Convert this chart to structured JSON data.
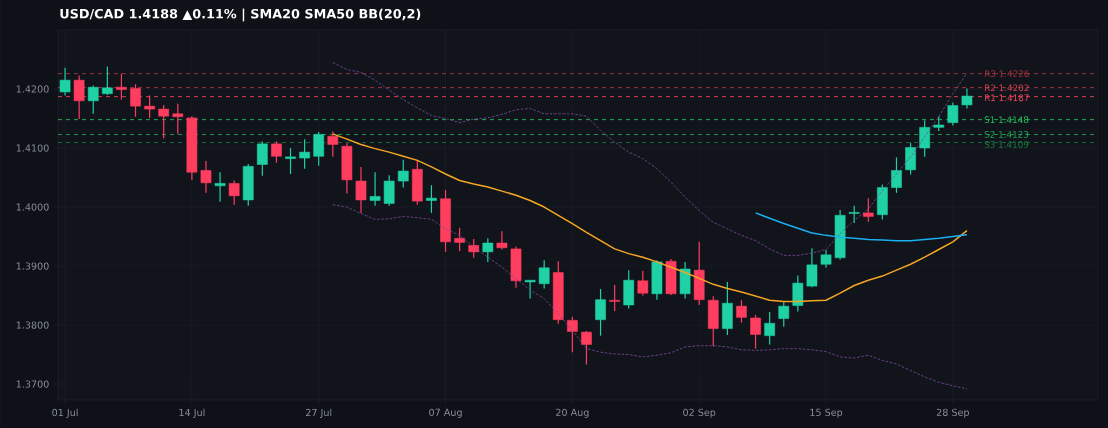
{
  "chart_data": {
    "type": "candlestick",
    "title": "USD/CAD  1.4188  ▲0.11%  |  SMA20  SMA50  BB(20,2)",
    "categories": [
      "01 Jul",
      null,
      null,
      null,
      null,
      null,
      null,
      null,
      null,
      "14 Jul",
      null,
      null,
      null,
      null,
      null,
      null,
      null,
      null,
      "27 Jul",
      null,
      null,
      null,
      null,
      null,
      null,
      null,
      null,
      "07 Aug",
      null,
      null,
      null,
      null,
      null,
      null,
      null,
      null,
      "20 Aug",
      null,
      null,
      null,
      null,
      null,
      null,
      null,
      null,
      "02 Sep",
      null,
      null,
      null,
      null,
      null,
      null,
      null,
      null,
      "15 Sep",
      null,
      null,
      null,
      null,
      null,
      null,
      null,
      null,
      "28 Sep",
      null
    ],
    "ohlc": [
      [
        1.4195,
        1.4236,
        1.4189,
        1.4215
      ],
      [
        1.4215,
        1.4223,
        1.4149,
        1.418
      ],
      [
        1.418,
        1.4206,
        1.4158,
        1.4203
      ],
      [
        1.4192,
        1.4238,
        1.419,
        1.4202
      ],
      [
        1.4203,
        1.4226,
        1.4182,
        1.4199
      ],
      [
        1.4201,
        1.4208,
        1.4153,
        1.4171
      ],
      [
        1.4171,
        1.4189,
        1.4151,
        1.4166
      ],
      [
        1.4166,
        1.4173,
        1.4116,
        1.4154
      ],
      [
        1.4158,
        1.4175,
        1.4124,
        1.4153
      ],
      [
        1.4151,
        1.4154,
        1.4046,
        1.4059
      ],
      [
        1.4062,
        1.4078,
        1.4024,
        1.4041
      ],
      [
        1.4036,
        1.4059,
        1.4009,
        1.404
      ],
      [
        1.404,
        1.4045,
        1.4004,
        1.4019
      ],
      [
        1.4012,
        1.4073,
        1.4002,
        1.4069
      ],
      [
        1.4072,
        1.4111,
        1.4053,
        1.4107
      ],
      [
        1.4107,
        1.4111,
        1.4075,
        1.4086
      ],
      [
        1.4082,
        1.41,
        1.4056,
        1.4085
      ],
      [
        1.4083,
        1.4115,
        1.4065,
        1.4093
      ],
      [
        1.4086,
        1.4127,
        1.407,
        1.4123
      ],
      [
        1.412,
        1.4128,
        1.4085,
        1.4106
      ],
      [
        1.4103,
        1.4108,
        1.4023,
        1.4046
      ],
      [
        1.4044,
        1.4068,
        1.399,
        1.4012
      ],
      [
        1.4011,
        1.4059,
        1.4002,
        1.4018
      ],
      [
        1.4006,
        1.4054,
        1.4002,
        1.4044
      ],
      [
        1.4044,
        1.408,
        1.4033,
        1.4061
      ],
      [
        1.4064,
        1.408,
        1.4004,
        1.401
      ],
      [
        1.4011,
        1.4037,
        1.399,
        1.4015
      ],
      [
        1.4014,
        1.4029,
        1.3924,
        1.3941
      ],
      [
        1.3947,
        1.3965,
        1.3925,
        1.394
      ],
      [
        1.3935,
        1.3946,
        1.3914,
        1.3924
      ],
      [
        1.3924,
        1.3947,
        1.3907,
        1.3939
      ],
      [
        1.3939,
        1.3959,
        1.3928,
        1.3931
      ],
      [
        1.3929,
        1.3933,
        1.3863,
        1.3875
      ],
      [
        1.3873,
        1.3876,
        1.3845,
        1.3876
      ],
      [
        1.387,
        1.391,
        1.3862,
        1.3897
      ],
      [
        1.3889,
        1.3908,
        1.3802,
        1.3809
      ],
      [
        1.3808,
        1.3814,
        1.3754,
        1.3789
      ],
      [
        1.3788,
        1.379,
        1.3733,
        1.3767
      ],
      [
        1.3809,
        1.3861,
        1.3782,
        1.3843
      ],
      [
        1.3842,
        1.3868,
        1.3824,
        1.384
      ],
      [
        1.3834,
        1.3893,
        1.3828,
        1.3876
      ],
      [
        1.3875,
        1.3892,
        1.385,
        1.3854
      ],
      [
        1.3853,
        1.391,
        1.3843,
        1.3907
      ],
      [
        1.3908,
        1.3912,
        1.3851,
        1.3853
      ],
      [
        1.3853,
        1.3907,
        1.3845,
        1.3895
      ],
      [
        1.3893,
        1.3941,
        1.3834,
        1.3843
      ],
      [
        1.3842,
        1.3849,
        1.3764,
        1.3794
      ],
      [
        1.3794,
        1.3873,
        1.3783,
        1.3837
      ],
      [
        1.3832,
        1.3842,
        1.3804,
        1.3813
      ],
      [
        1.3812,
        1.3817,
        1.376,
        1.3784
      ],
      [
        1.3782,
        1.3822,
        1.3767,
        1.3803
      ],
      [
        1.3811,
        1.3839,
        1.3797,
        1.3832
      ],
      [
        1.3833,
        1.3884,
        1.3823,
        1.3871
      ],
      [
        1.3866,
        1.393,
        1.3864,
        1.3902
      ],
      [
        1.3903,
        1.3927,
        1.3897,
        1.3919
      ],
      [
        1.3914,
        1.3995,
        1.3911,
        1.3986
      ],
      [
        1.3989,
        1.4002,
        1.3973,
        1.3991
      ],
      [
        1.399,
        1.4015,
        1.3975,
        1.3984
      ],
      [
        1.3987,
        1.4038,
        1.3979,
        1.4033
      ],
      [
        1.4033,
        1.4084,
        1.4024,
        1.4062
      ],
      [
        1.4063,
        1.4109,
        1.4055,
        1.4101
      ],
      [
        1.41,
        1.4147,
        1.4085,
        1.4135
      ],
      [
        1.4135,
        1.4154,
        1.4129,
        1.4139
      ],
      [
        1.4143,
        1.4177,
        1.4138,
        1.4172
      ],
      [
        1.4173,
        1.4201,
        1.4167,
        1.4188
      ]
    ],
    "colors": [
      "#1fd1a5",
      "#ff3d5f",
      "#1fd1a5",
      "#1fd1a5",
      "#ff3d5f",
      "#ff3d5f",
      "#ff3d5f",
      "#ff3d5f",
      "#ff3d5f",
      "#ff3d5f",
      "#ff3d5f",
      "#1fd1a5",
      "#ff3d5f",
      "#1fd1a5",
      "#1fd1a5",
      "#ff3d5f",
      "#1fd1a5",
      "#1fd1a5",
      "#1fd1a5",
      "#ff3d5f",
      "#ff3d5f",
      "#ff3d5f",
      "#1fd1a5",
      "#1fd1a5",
      "#1fd1a5",
      "#ff3d5f",
      "#1fd1a5",
      "#ff3d5f",
      "#ff3d5f",
      "#ff3d5f",
      "#1fd1a5",
      "#ff3d5f",
      "#ff3d5f",
      "#1fd1a5",
      "#1fd1a5",
      "#ff3d5f",
      "#ff3d5f",
      "#ff3d5f",
      "#1fd1a5",
      "#ff3d5f",
      "#1fd1a5",
      "#ff3d5f",
      "#1fd1a5",
      "#ff3d5f",
      "#1fd1a5",
      "#ff3d5f",
      "#ff3d5f",
      "#1fd1a5",
      "#ff3d5f",
      "#ff3d5f",
      "#1fd1a5",
      "#1fd1a5",
      "#1fd1a5",
      "#1fd1a5",
      "#1fd1a5",
      "#1fd1a5",
      "#1fd1a5",
      "#ff3d5f",
      "#1fd1a5",
      "#1fd1a5",
      "#1fd1a5",
      "#1fd1a5",
      "#1fd1a5",
      "#1fd1a5",
      "#1fd1a5"
    ],
    "series": [
      {
        "type": "line",
        "color": "#7e4a9e",
        "line_style": "dashed",
        "values": [
          null,
          null,
          null,
          null,
          null,
          null,
          null,
          null,
          null,
          null,
          null,
          null,
          null,
          null,
          null,
          null,
          null,
          null,
          null,
          1.4245,
          1.4233,
          1.4228,
          1.4215,
          1.4198,
          1.4182,
          1.4168,
          1.4155,
          1.415,
          1.4143,
          1.4149,
          1.4151,
          1.4157,
          1.4165,
          1.4167,
          1.4158,
          1.4158,
          1.4158,
          1.4154,
          1.413,
          1.411,
          1.4093,
          1.4082,
          1.4065,
          1.4042,
          1.4017,
          1.3994,
          1.3974,
          1.3963,
          1.3952,
          1.3943,
          1.3929,
          1.3918,
          1.3918,
          1.3922,
          1.3928,
          1.3955,
          1.3977,
          1.3997,
          1.4028,
          1.4056,
          1.4085,
          1.4119,
          1.4153,
          1.4192,
          1.4227
        ]
      },
      {
        "type": "line",
        "color": "#7e4a9e",
        "line_style": "dashed",
        "values": [
          null,
          null,
          null,
          null,
          null,
          null,
          null,
          null,
          null,
          null,
          null,
          null,
          null,
          null,
          null,
          null,
          null,
          null,
          null,
          1.4004,
          1.4,
          1.3989,
          1.3979,
          1.398,
          1.3984,
          1.3982,
          1.3979,
          1.3963,
          1.3952,
          1.3932,
          1.3915,
          1.3898,
          1.3879,
          1.3859,
          1.3845,
          1.3819,
          1.3791,
          1.376,
          1.3754,
          1.3751,
          1.375,
          1.3746,
          1.3749,
          1.3753,
          1.3763,
          1.3765,
          1.3765,
          1.3763,
          1.3758,
          1.3757,
          1.3758,
          1.376,
          1.376,
          1.3758,
          1.3755,
          1.3746,
          1.3744,
          1.3749,
          1.374,
          1.3734,
          1.3723,
          1.3712,
          1.3703,
          1.3697,
          1.3692
        ]
      },
      {
        "type": "line",
        "color": "#f5a623",
        "values": [
          null,
          null,
          null,
          null,
          null,
          null,
          null,
          null,
          null,
          null,
          null,
          null,
          null,
          null,
          null,
          null,
          null,
          null,
          null,
          1.4124,
          1.4115,
          1.4106,
          1.4099,
          1.4093,
          1.4086,
          1.4079,
          1.4068,
          1.4056,
          1.4045,
          1.4039,
          1.4034,
          1.4027,
          1.402,
          1.4011,
          1.4,
          1.3986,
          1.3972,
          1.3957,
          1.3943,
          1.3929,
          1.3921,
          1.3915,
          1.3907,
          1.3898,
          1.3889,
          1.3879,
          1.3869,
          1.3862,
          1.3856,
          1.3849,
          1.3842,
          1.384,
          1.384,
          1.3841,
          1.3842,
          1.3854,
          1.3867,
          1.3876,
          1.3883,
          1.3893,
          1.3903,
          1.3915,
          1.3928,
          1.3941,
          1.396
        ]
      },
      {
        "type": "line",
        "color": "#1ab0f0",
        "values": [
          null,
          null,
          null,
          null,
          null,
          null,
          null,
          null,
          null,
          null,
          null,
          null,
          null,
          null,
          null,
          null,
          null,
          null,
          null,
          null,
          null,
          null,
          null,
          null,
          null,
          null,
          null,
          null,
          null,
          null,
          null,
          null,
          null,
          null,
          null,
          null,
          null,
          null,
          null,
          null,
          null,
          null,
          null,
          null,
          null,
          null,
          null,
          null,
          null,
          1.399,
          1.3981,
          1.3972,
          1.3964,
          1.3956,
          1.3952,
          1.3949,
          1.3947,
          1.3945,
          1.3944,
          1.3943,
          1.3943,
          1.3945,
          1.3947,
          1.395,
          1.3953
        ]
      }
    ],
    "ylim": [
      1.3673,
      1.43
    ],
    "yticks": [
      {
        "value": 1.37,
        "label": "1.3700"
      },
      {
        "value": 1.38,
        "label": "1.3800"
      },
      {
        "value": 1.39,
        "label": "1.3900"
      },
      {
        "value": 1.4,
        "label": "1.4000"
      },
      {
        "value": 1.41,
        "label": "1.4100"
      },
      {
        "value": 1.42,
        "label": "1.4200"
      }
    ],
    "ref_lines": [
      {
        "axis": "y",
        "value": 1.4226,
        "label": "R3 1.4226",
        "color": "#a8323f",
        "line_style": "dashed"
      },
      {
        "axis": "y",
        "value": 1.4202,
        "label": "R2 1.4202",
        "color": "#d9404f",
        "line_style": "dashed"
      },
      {
        "axis": "y",
        "value": 1.4187,
        "label": "R1 1.4187",
        "color": "#f0465a",
        "line_style": "dashed"
      },
      {
        "axis": "y",
        "value": 1.4148,
        "label": "S1 1.4148",
        "color": "#22c55e",
        "line_style": "dashed"
      },
      {
        "axis": "y",
        "value": 1.4123,
        "label": "S2 1.4123",
        "color": "#1fa653",
        "line_style": "dashed"
      },
      {
        "axis": "y",
        "value": 1.4109,
        "label": "S3 1.4109",
        "color": "#17803f",
        "line_style": "dashed"
      }
    ],
    "grid": true
  }
}
